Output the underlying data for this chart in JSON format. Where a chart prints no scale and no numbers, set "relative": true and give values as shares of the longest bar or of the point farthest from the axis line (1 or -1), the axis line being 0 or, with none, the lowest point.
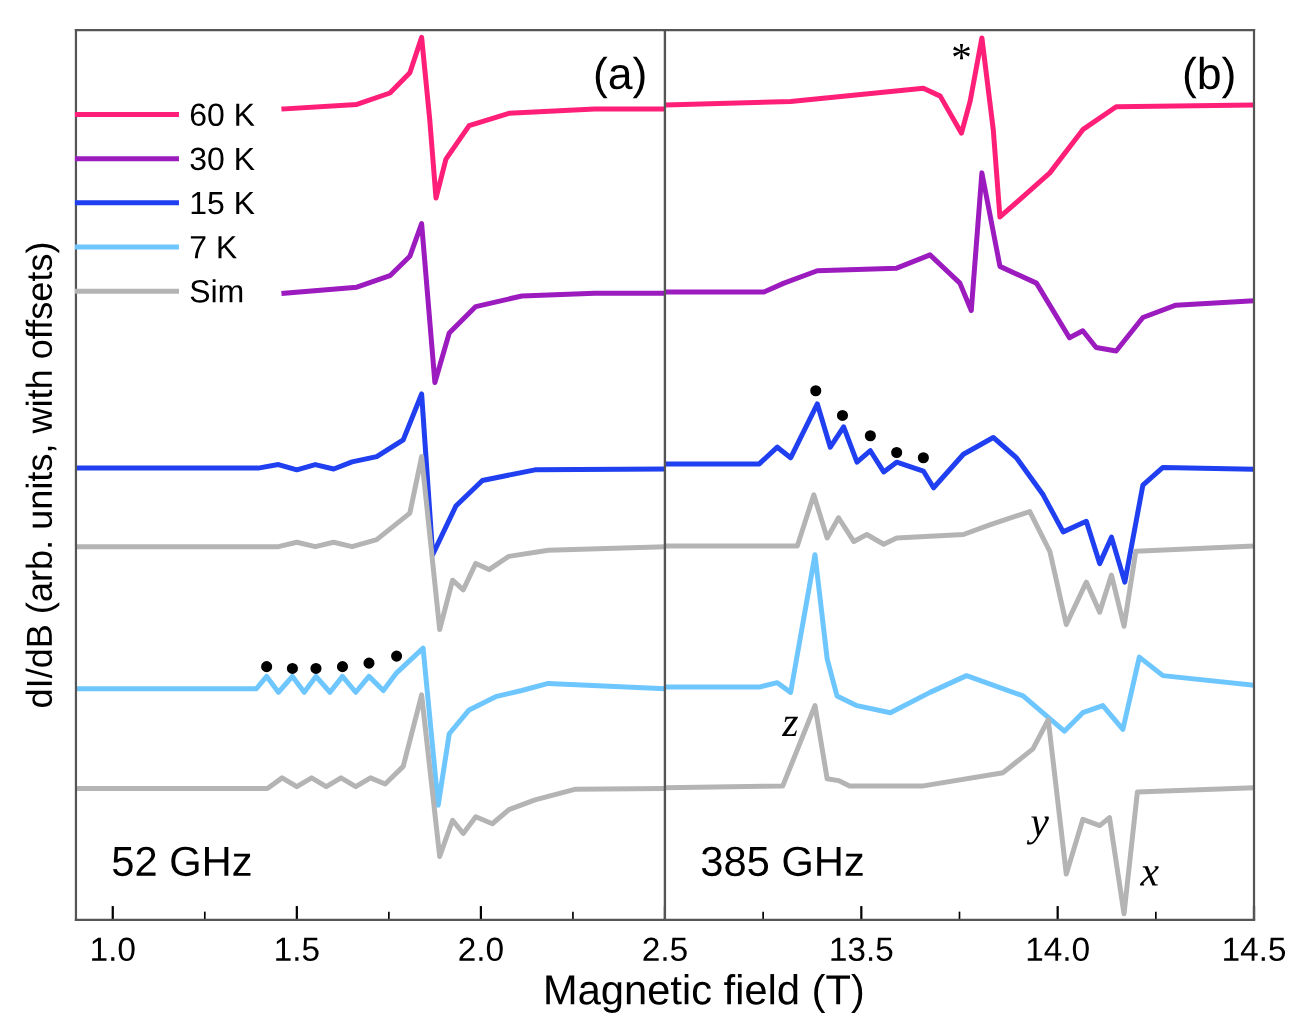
{
  "chart_data": [
    {
      "type": "line",
      "title": "(a)",
      "subtitle": "52 GHz",
      "xlabel": "Magnetic field (T)",
      "ylabel": "dI/dB (arb. units, with offsets)",
      "relative": true,
      "xlim": [
        0.9,
        2.5
      ],
      "xticks": [
        {
          "value": 1.0,
          "label": "1.0"
        },
        {
          "value": 1.25,
          "label": null
        },
        1.5,
        {
          "value": 1.75,
          "label": null
        },
        {
          "value": 2.0,
          "label": "2.0"
        },
        {
          "value": 2.25,
          "label": null
        },
        2.5
      ],
      "tick_labels": "x",
      "legend": "top left",
      "grid": false,
      "series": [
        {
          "name": "60 K",
          "color": "#ff1f78",
          "x": [
            1.465,
            1.663,
            1.753,
            1.807,
            1.839,
            1.861,
            1.878,
            1.905,
            1.968,
            2.076,
            2.309,
            2.5
          ],
          "values": [
            0.919,
            0.924,
            0.937,
            0.96,
            1.0,
            0.907,
            0.818,
            0.862,
            0.9,
            0.914,
            0.919,
            0.919
          ]
        },
        {
          "name": "30 K",
          "color": "#9b1bbf",
          "x": [
            1.465,
            1.663,
            1.753,
            1.807,
            1.839,
            1.875,
            1.914,
            1.986,
            2.111,
            2.309,
            2.5
          ],
          "values": [
            0.71,
            0.717,
            0.73,
            0.752,
            0.789,
            0.609,
            0.665,
            0.695,
            0.707,
            0.71,
            0.71
          ]
        },
        {
          "name": "15 K",
          "color": "#1f3ff0",
          "x": [
            0.9,
            1.395,
            1.45,
            1.5,
            1.55,
            1.6,
            1.65,
            1.717,
            1.789,
            1.839,
            1.869,
            1.932,
            2.004,
            2.147,
            2.5
          ],
          "values": [
            0.512,
            0.512,
            0.516,
            0.51,
            0.516,
            0.511,
            0.519,
            0.525,
            0.544,
            0.596,
            0.414,
            0.469,
            0.498,
            0.51,
            0.511
          ]
        },
        {
          "name": "7 K",
          "color": "#6ec6ff",
          "x": [
            0.9,
            1.39,
            1.418,
            1.45,
            1.488,
            1.52,
            1.552,
            1.59,
            1.624,
            1.66,
            1.696,
            1.735,
            1.771,
            1.843,
            1.884,
            1.914,
            1.968,
            2.04,
            2.111,
            2.183,
            2.5
          ],
          "values": [
            0.262,
            0.262,
            0.276,
            0.258,
            0.276,
            0.258,
            0.276,
            0.258,
            0.276,
            0.258,
            0.276,
            0.26,
            0.28,
            0.308,
            0.13,
            0.211,
            0.238,
            0.253,
            0.26,
            0.268,
            0.262
          ]
        },
        {
          "name": "Sim",
          "color": "#b4b4b4",
          "x": [
            0.9,
            1.45,
            1.5,
            1.55,
            1.6,
            1.65,
            1.717,
            1.807,
            1.839,
            1.888,
            1.923,
            1.952,
            1.986,
            2.022,
            2.076,
            2.183,
            2.5
          ],
          "values": [
            0.423,
            0.423,
            0.428,
            0.423,
            0.428,
            0.423,
            0.431,
            0.461,
            0.525,
            0.329,
            0.385,
            0.374,
            0.404,
            0.397,
            0.412,
            0.419,
            0.423
          ]
        },
        {
          "color": "#b4b4b4",
          "x": [
            0.9,
            1.42,
            1.46,
            1.5,
            1.54,
            1.58,
            1.62,
            1.66,
            1.7,
            1.74,
            1.789,
            1.839,
            1.888,
            1.923,
            1.952,
            1.986,
            2.031,
            2.076,
            2.147,
            2.255,
            2.5
          ],
          "values": [
            0.149,
            0.149,
            0.161,
            0.151,
            0.161,
            0.151,
            0.161,
            0.151,
            0.161,
            0.154,
            0.174,
            0.255,
            0.072,
            0.113,
            0.098,
            0.117,
            0.109,
            0.125,
            0.136,
            0.148,
            0.149
          ]
        },
        {
          "type": "scatter",
          "color": "#000000",
          "marker": "circle",
          "x": [
            1.418,
            1.488,
            1.552,
            1.624,
            1.696,
            1.771
          ],
          "values": [
            0.287,
            0.285,
            0.285,
            0.287,
            0.291,
            0.299
          ]
        }
      ]
    },
    {
      "type": "line",
      "title": "(b)",
      "subtitle": "385 GHz",
      "relative": true,
      "xlim": [
        13.0,
        14.5
      ],
      "xticks": [
        {
          "value": 13.0,
          "label": null
        },
        {
          "value": 13.25,
          "label": null
        },
        13.5,
        {
          "value": 13.75,
          "label": null
        },
        {
          "value": 14.0,
          "label": "14.0"
        },
        {
          "value": 14.25,
          "label": null
        },
        14.5
      ],
      "tick_labels": "x",
      "grid": false,
      "annotations": [
        "*",
        "z",
        "y",
        "x"
      ],
      "series": [
        {
          "color": "#ff1f78",
          "x": [
            13.0,
            13.32,
            13.658,
            13.701,
            13.755,
            13.777,
            13.807,
            13.836,
            13.853,
            13.912,
            13.98,
            14.064,
            14.149,
            14.5
          ],
          "values": [
            0.924,
            0.928,
            0.943,
            0.934,
            0.892,
            0.928,
            1.0,
            0.896,
            0.797,
            0.82,
            0.847,
            0.896,
            0.922,
            0.924
          ]
        },
        {
          "color": "#9b1bbf",
          "x": [
            13.0,
            13.252,
            13.303,
            13.388,
            13.59,
            13.675,
            13.751,
            13.78,
            13.807,
            13.853,
            13.946,
            14.03,
            14.064,
            14.098,
            14.149,
            14.217,
            14.301,
            14.5
          ],
          "values": [
            0.712,
            0.712,
            0.722,
            0.736,
            0.739,
            0.754,
            0.722,
            0.691,
            0.847,
            0.741,
            0.722,
            0.66,
            0.668,
            0.649,
            0.645,
            0.683,
            0.697,
            0.702
          ]
        },
        {
          "color": "#1f3ff0",
          "x": [
            13.0,
            13.24,
            13.286,
            13.32,
            13.388,
            13.421,
            13.455,
            13.489,
            13.523,
            13.557,
            13.59,
            13.658,
            13.684,
            13.76,
            13.836,
            13.895,
            13.963,
            14.014,
            14.073,
            14.107,
            14.137,
            14.171,
            14.217,
            14.268,
            14.5
          ],
          "values": [
            0.517,
            0.517,
            0.536,
            0.524,
            0.585,
            0.536,
            0.559,
            0.519,
            0.532,
            0.508,
            0.519,
            0.509,
            0.49,
            0.528,
            0.547,
            0.524,
            0.482,
            0.44,
            0.452,
            0.404,
            0.434,
            0.383,
            0.493,
            0.513,
            0.511
          ]
        },
        {
          "color": "#6ec6ff",
          "x": [
            13.0,
            13.24,
            13.286,
            13.32,
            13.382,
            13.413,
            13.438,
            13.489,
            13.574,
            13.675,
            13.768,
            13.912,
            14.017,
            14.064,
            14.115,
            14.166,
            14.208,
            14.268,
            14.5
          ],
          "values": [
            0.264,
            0.264,
            0.269,
            0.258,
            0.414,
            0.296,
            0.254,
            0.243,
            0.235,
            0.258,
            0.277,
            0.254,
            0.214,
            0.235,
            0.243,
            0.216,
            0.298,
            0.277,
            0.266
          ]
        },
        {
          "color": "#b4b4b4",
          "x": [
            13.0,
            13.337,
            13.379,
            13.413,
            13.442,
            13.481,
            13.514,
            13.557,
            13.59,
            13.76,
            13.827,
            13.929,
            13.98,
            14.022,
            14.073,
            14.107,
            14.137,
            14.169,
            14.199,
            14.5
          ],
          "values": [
            0.424,
            0.424,
            0.482,
            0.433,
            0.456,
            0.429,
            0.437,
            0.426,
            0.433,
            0.437,
            0.448,
            0.463,
            0.418,
            0.335,
            0.383,
            0.349,
            0.391,
            0.333,
            0.418,
            0.424
          ]
        },
        {
          "color": "#b4b4b4",
          "x": [
            13.0,
            13.3,
            13.382,
            13.413,
            13.442,
            13.47,
            13.658,
            13.861,
            13.937,
            13.976,
            14.022,
            14.064,
            14.107,
            14.132,
            14.169,
            14.203,
            14.5
          ],
          "values": [
            0.15,
            0.152,
            0.243,
            0.16,
            0.158,
            0.152,
            0.152,
            0.167,
            0.194,
            0.227,
            0.052,
            0.114,
            0.107,
            0.116,
            0.007,
            0.145,
            0.15
          ]
        },
        {
          "type": "scatter",
          "color": "#000000",
          "marker": "circle",
          "x": [
            13.384,
            13.452,
            13.523,
            13.59,
            13.658
          ],
          "values": [
            0.6,
            0.572,
            0.549,
            0.53,
            0.524
          ]
        }
      ]
    }
  ]
}
